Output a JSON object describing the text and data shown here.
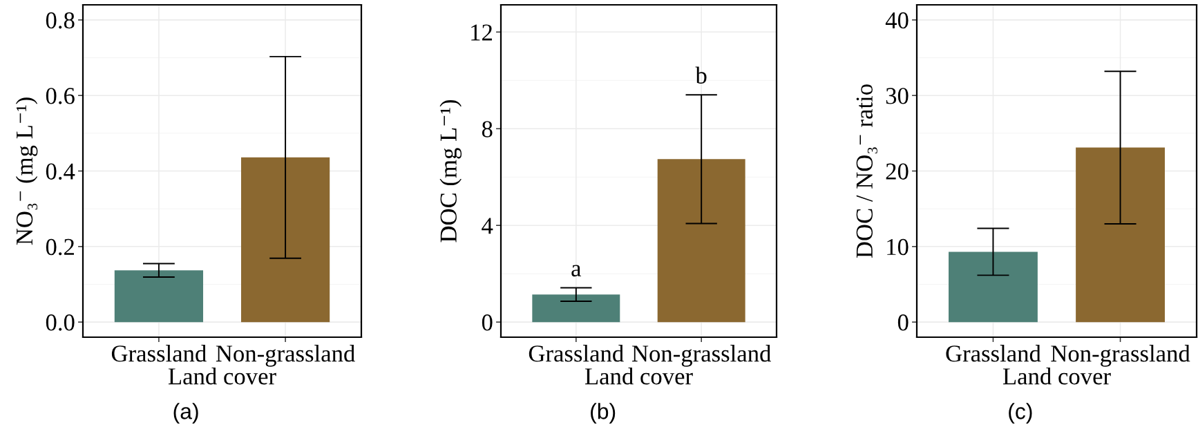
{
  "chart_data": [
    {
      "type": "bar",
      "categories": [
        "Grassland",
        "Non-grassland"
      ],
      "values": [
        0.137,
        0.436
      ],
      "errors": [
        0.018,
        0.267
      ],
      "colors": [
        "#4e8077",
        "#8b6830"
      ],
      "xlabel": "Land cover",
      "ylabel": "NO₃⁻ (mg L⁻¹)",
      "ylim": [
        -0.04,
        0.84
      ],
      "yticks": [
        {
          "value": 0,
          "label": "0.0"
        },
        0.2,
        0.4,
        0.6,
        0.8
      ],
      "grid": true,
      "annotations": [
        "(a)"
      ]
    },
    {
      "type": "bar",
      "categories": [
        "Grassland",
        "Non-grassland"
      ],
      "values": [
        1.14,
        6.74
      ],
      "errors": [
        0.28,
        2.66
      ],
      "colors": [
        "#4e8077",
        "#8b6830"
      ],
      "xlabel": "Land cover",
      "ylabel": "DOC (mg L⁻¹)",
      "ylim": [
        -0.625,
        13.125
      ],
      "yticks": [
        0,
        4,
        8,
        12
      ],
      "grid": true,
      "annotations": [
        "(b)",
        {
          "text": "a",
          "x": "Grassland",
          "y": 1.42
        },
        {
          "text": "b",
          "x": "Non-grassland",
          "y": 9.4
        }
      ]
    },
    {
      "type": "bar",
      "categories": [
        "Grassland",
        "Non-grassland"
      ],
      "values": [
        9.3,
        23.1
      ],
      "errors": [
        3.1,
        10.1
      ],
      "colors": [
        "#4e8077",
        "#8b6830"
      ],
      "xlabel": "Land cover",
      "ylabel": "DOC / NO₃⁻ ratio",
      "ylim": [
        -2,
        42
      ],
      "yticks": [
        0,
        10,
        20,
        30,
        40
      ],
      "grid": true,
      "annotations": [
        "(c)"
      ]
    }
  ]
}
